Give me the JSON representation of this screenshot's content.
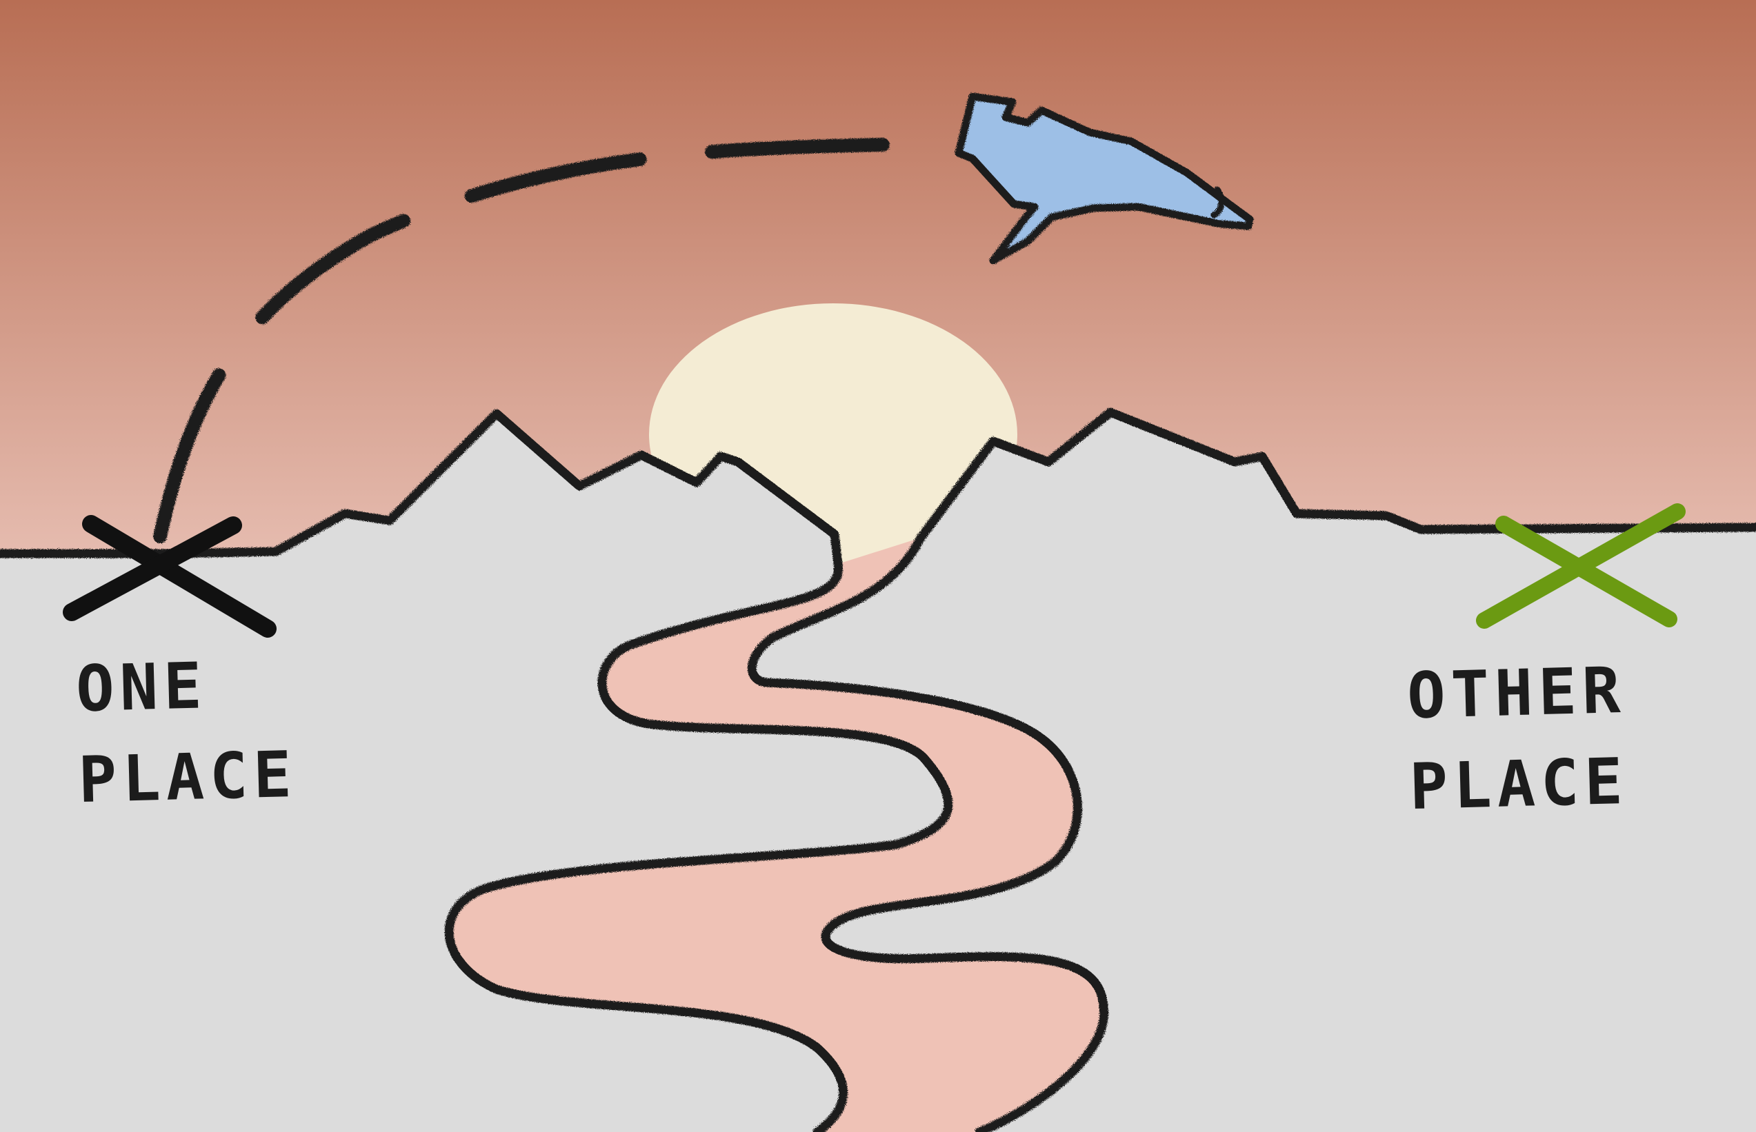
{
  "labels": {
    "one_place": [
      "ONE",
      "PLACE"
    ],
    "other_place": [
      "OTHER",
      "PLACE"
    ]
  },
  "icons": {
    "origin_marker": "x-mark-icon",
    "destination_marker": "x-mark-icon",
    "vehicle": "airplane-icon",
    "sun": "sun-icon"
  },
  "colors": {
    "sky_top": "#b86e54",
    "sky_horizon": "#e7beb2",
    "ground": "#dcdcdc",
    "river": "#efc2b6",
    "sun": "#f4ecd4",
    "airplane": "#9dbfe6",
    "outline": "#1c1c1c",
    "origin_marker": "#111111",
    "destination_marker": "#6b9a12"
  }
}
